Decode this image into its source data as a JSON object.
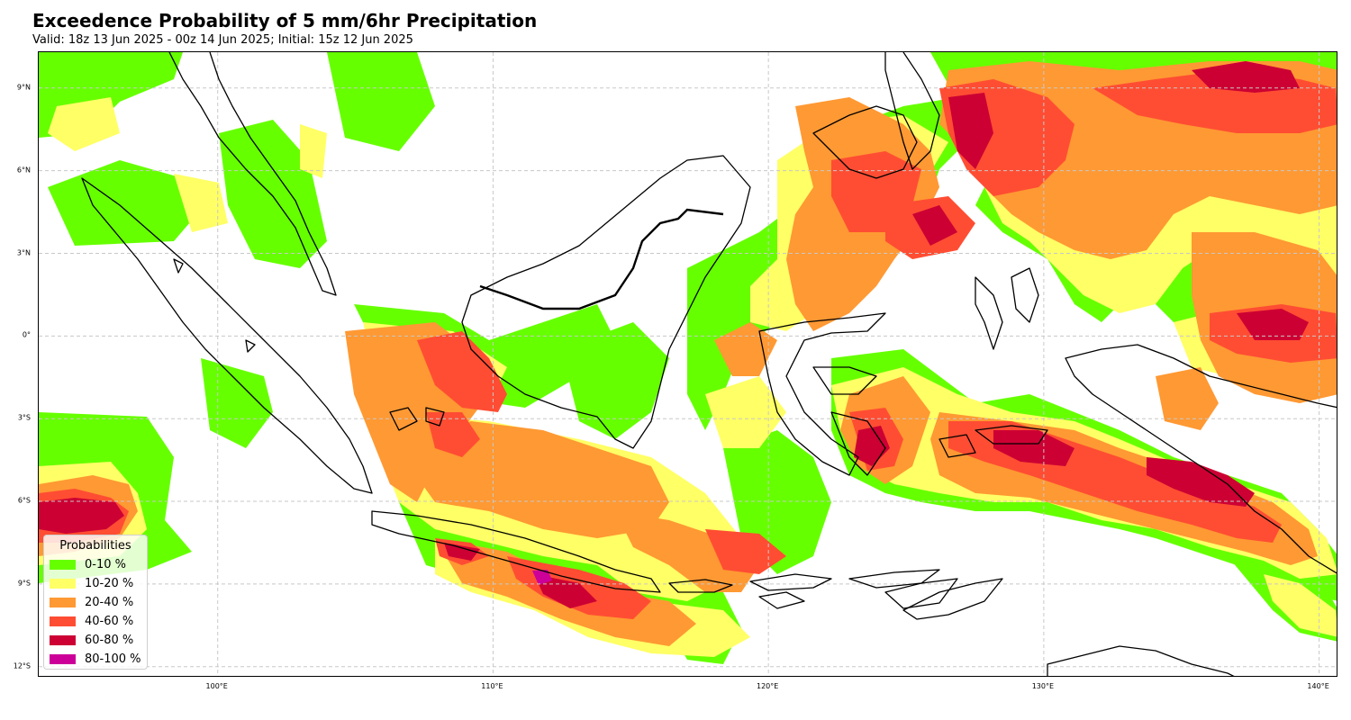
{
  "title": "Exceedence Probability of 5 mm/6hr Precipitation",
  "subtitle": "Valid: 18z 13 Jun 2025 - 00z 14 Jun 2025; Initial: 15z 12 Jun 2025",
  "map": {
    "extent": {
      "lon_min": 93.5,
      "lon_max": 140.7,
      "lat_min": -12.4,
      "lat_max": 10.3
    },
    "lat_ticks": [
      {
        "value": 9,
        "label": "9°N"
      },
      {
        "value": 6,
        "label": "6°N"
      },
      {
        "value": 3,
        "label": "3°N"
      },
      {
        "value": 0,
        "label": "0°"
      },
      {
        "value": -3,
        "label": "3°S"
      },
      {
        "value": -6,
        "label": "6°S"
      },
      {
        "value": -9,
        "label": "9°S"
      },
      {
        "value": -12,
        "label": "12°S"
      }
    ],
    "lon_ticks": [
      {
        "value": 100,
        "label": "100°E"
      },
      {
        "value": 110,
        "label": "110°E"
      },
      {
        "value": 120,
        "label": "120°E"
      },
      {
        "value": 130,
        "label": "130°E"
      },
      {
        "value": 140,
        "label": "140°E"
      }
    ],
    "gridlines": true
  },
  "legend": {
    "title": "Probabilities",
    "placement": "lower-left",
    "items": [
      {
        "label": "0-10 %",
        "color": "#66ff00"
      },
      {
        "label": "10-20 %",
        "color": "#ffff66"
      },
      {
        "label": "20-40 %",
        "color": "#ff9933"
      },
      {
        "label": "40-60 %",
        "color": "#ff4d33"
      },
      {
        "label": "60-80 %",
        "color": "#cc0033"
      },
      {
        "label": "80-100 %",
        "color": "#cc0099"
      }
    ]
  }
}
